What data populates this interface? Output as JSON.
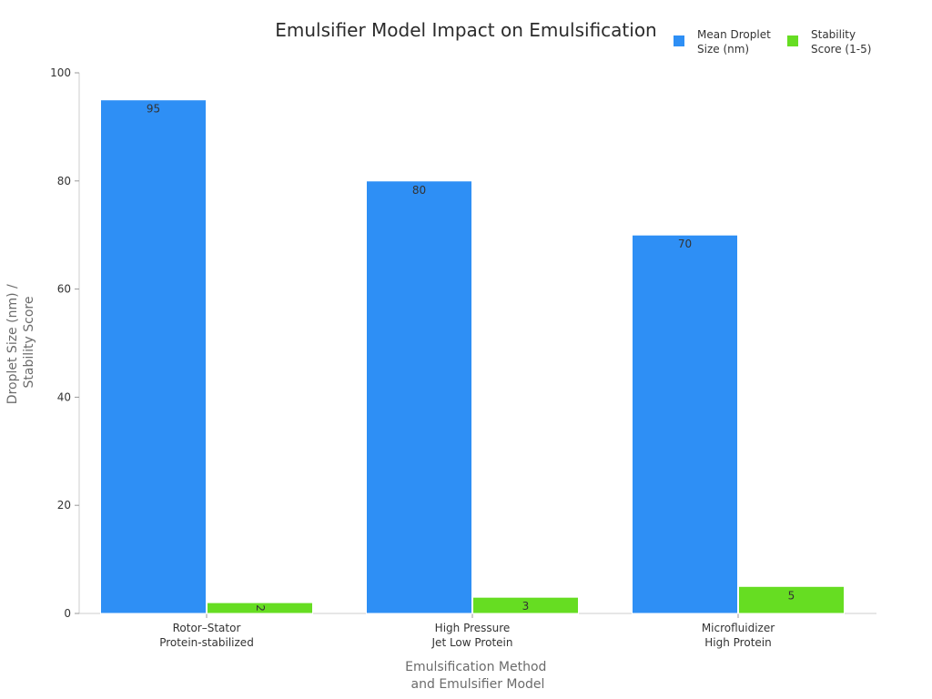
{
  "chart_data": {
    "type": "bar",
    "title": "Emulsifier Model Impact on Emulsification",
    "xlabel": [
      "Emulsification Method",
      "and Emulsifier Model"
    ],
    "ylabel": [
      "Droplet Size (nm) /",
      "Stability Score"
    ],
    "categories": [
      [
        "Rotor–Stator",
        "Protein-stabilized"
      ],
      [
        "High Pressure",
        "Jet Low Protein"
      ],
      [
        "Microfluidizer",
        "High Protein"
      ]
    ],
    "series": [
      {
        "name": [
          "Mean Droplet",
          "Size (nm)"
        ],
        "values": [
          95,
          80,
          70
        ],
        "color": "#2e8ff5",
        "labels": [
          "95",
          "80",
          "70"
        ]
      },
      {
        "name": [
          "Stability",
          "Score (1-5)"
        ],
        "values": [
          2,
          3,
          5
        ],
        "color": "#66dd22",
        "labels": [
          "2",
          "3",
          "5"
        ]
      }
    ],
    "ylim": [
      0,
      100
    ],
    "yticks": [
      0,
      20,
      40,
      60,
      80,
      100
    ],
    "ytick_labels": [
      "0",
      "20",
      "40",
      "60",
      "80",
      "100"
    ],
    "grid": false,
    "legend": "top-right"
  }
}
